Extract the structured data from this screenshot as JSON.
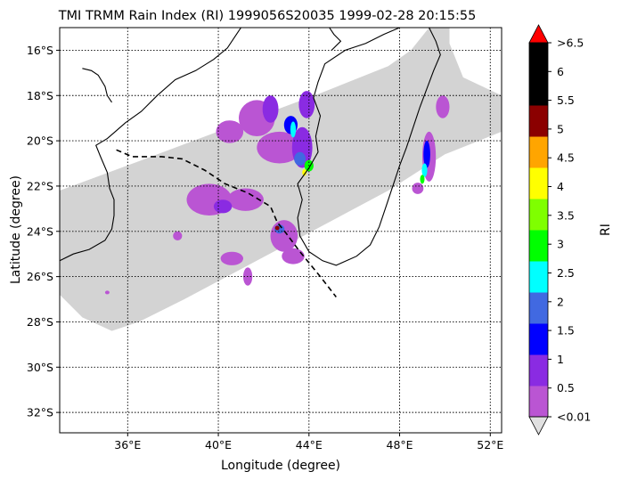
{
  "title": "TMI TRMM Rain Index (RI) 1999056S20035 1999-02-28 20:15:55",
  "xlabel": "Longitude (degree)",
  "ylabel": "Latitude (degree)",
  "map": {
    "lon_range": [
      33,
      52.5
    ],
    "lat_range": [
      -32.9,
      -15
    ],
    "lon_ticks": [
      {
        "value": 36,
        "label": "36°E"
      },
      {
        "value": 40,
        "label": "40°E"
      },
      {
        "value": 44,
        "label": "44°E"
      },
      {
        "value": 48,
        "label": "48°E"
      },
      {
        "value": 52,
        "label": "52°E"
      }
    ],
    "lat_ticks": [
      {
        "value": -16,
        "label": "16°S"
      },
      {
        "value": -18,
        "label": "18°S"
      },
      {
        "value": -20,
        "label": "20°S"
      },
      {
        "value": -22,
        "label": "22°S"
      },
      {
        "value": -24,
        "label": "24°S"
      },
      {
        "value": -26,
        "label": "26°S"
      },
      {
        "value": -28,
        "label": "28°S"
      },
      {
        "value": -30,
        "label": "30°S"
      },
      {
        "value": -32,
        "label": "32°S"
      }
    ],
    "grid": "dotted",
    "swath_color": "#d3d3d3",
    "track": [
      [
        35.5,
        -20.4
      ],
      [
        36.2,
        -20.7
      ],
      [
        37.5,
        -20.7
      ],
      [
        38.4,
        -20.8
      ],
      [
        39.4,
        -21.3
      ],
      [
        40.3,
        -21.9
      ],
      [
        41.3,
        -22.3
      ],
      [
        42.3,
        -22.9
      ],
      [
        42.6,
        -23.6
      ],
      [
        43.0,
        -24.1
      ],
      [
        43.6,
        -24.9
      ],
      [
        44.5,
        -26.0
      ],
      [
        45.2,
        -26.9
      ]
    ],
    "africa_coast": [
      [
        33,
        -25.3
      ],
      [
        33.6,
        -25.0
      ],
      [
        34.3,
        -24.8
      ],
      [
        35.0,
        -24.4
      ],
      [
        35.3,
        -23.9
      ],
      [
        35.4,
        -23.3
      ],
      [
        35.4,
        -22.6
      ],
      [
        35.2,
        -22.1
      ],
      [
        35.1,
        -21.4
      ],
      [
        34.8,
        -20.7
      ],
      [
        34.6,
        -20.2
      ],
      [
        35.1,
        -19.9
      ],
      [
        35.9,
        -19.2
      ],
      [
        36.6,
        -18.7
      ],
      [
        37.3,
        -18.0
      ],
      [
        38.1,
        -17.3
      ],
      [
        39.0,
        -16.9
      ],
      [
        39.8,
        -16.4
      ],
      [
        40.4,
        -15.9
      ],
      [
        40.8,
        -15.3
      ],
      [
        41.0,
        -15.0
      ]
    ],
    "lake_shore": [
      [
        34.0,
        -16.8
      ],
      [
        34.4,
        -16.9
      ],
      [
        34.7,
        -17.1
      ],
      [
        35.0,
        -17.6
      ],
      [
        35.1,
        -18.0
      ],
      [
        35.3,
        -18.3
      ]
    ],
    "madagascar_coast": [
      [
        49.3,
        -15.0
      ],
      [
        49.6,
        -15.6
      ],
      [
        49.8,
        -16.2
      ],
      [
        49.5,
        -16.9
      ],
      [
        49.2,
        -17.7
      ],
      [
        48.9,
        -18.5
      ],
      [
        48.6,
        -19.4
      ],
      [
        48.3,
        -20.3
      ],
      [
        48.0,
        -21.1
      ],
      [
        47.7,
        -22.0
      ],
      [
        47.4,
        -22.9
      ],
      [
        47.1,
        -23.8
      ],
      [
        46.7,
        -24.6
      ],
      [
        46.1,
        -25.1
      ],
      [
        45.2,
        -25.5
      ],
      [
        44.6,
        -25.3
      ],
      [
        44.0,
        -24.9
      ],
      [
        43.6,
        -24.2
      ],
      [
        43.5,
        -23.4
      ],
      [
        43.7,
        -22.6
      ],
      [
        43.5,
        -21.9
      ],
      [
        44.0,
        -21.2
      ],
      [
        44.4,
        -20.5
      ],
      [
        44.3,
        -19.8
      ],
      [
        44.5,
        -18.9
      ],
      [
        44.2,
        -18.1
      ],
      [
        44.4,
        -17.4
      ],
      [
        44.7,
        -16.6
      ],
      [
        45.6,
        -16.0
      ],
      [
        46.5,
        -15.7
      ],
      [
        47.3,
        -15.3
      ],
      [
        48.0,
        -15.0
      ]
    ],
    "mozambique_coast_north": [
      [
        44.9,
        -15.0
      ],
      [
        45.1,
        -15.3
      ],
      [
        45.4,
        -15.6
      ],
      [
        45.0,
        -16.0
      ]
    ]
  },
  "rain_clusters": [
    {
      "lon": 40.5,
      "lat": -19.6,
      "rx": 0.6,
      "ry": 0.5,
      "level": 0
    },
    {
      "lon": 41.7,
      "lat": -19.0,
      "rx": 0.8,
      "ry": 0.8,
      "level": 0
    },
    {
      "lon": 42.7,
      "lat": -20.3,
      "rx": 1.0,
      "ry": 0.7,
      "level": 0
    },
    {
      "lon": 43.7,
      "lat": -20.3,
      "rx": 0.45,
      "ry": 0.9,
      "level": 1
    },
    {
      "lon": 42.3,
      "lat": -18.6,
      "rx": 0.35,
      "ry": 0.6,
      "level": 1
    },
    {
      "lon": 43.2,
      "lat": -19.3,
      "rx": 0.3,
      "ry": 0.4,
      "level": 2
    },
    {
      "lon": 43.9,
      "lat": -18.4,
      "rx": 0.35,
      "ry": 0.6,
      "level": 1
    },
    {
      "lon": 43.3,
      "lat": -19.5,
      "rx": 0.12,
      "ry": 0.35,
      "level": 4
    },
    {
      "lon": 44.0,
      "lat": -21.1,
      "rx": 0.2,
      "ry": 0.25,
      "level": 5
    },
    {
      "lon": 43.8,
      "lat": -21.4,
      "rx": 0.1,
      "ry": 0.15,
      "level": 7
    },
    {
      "lon": 43.6,
      "lat": -20.8,
      "rx": 0.25,
      "ry": 0.3,
      "level": 3
    },
    {
      "lon": 39.6,
      "lat": -22.6,
      "rx": 1.0,
      "ry": 0.7,
      "level": 0
    },
    {
      "lon": 41.2,
      "lat": -22.6,
      "rx": 0.8,
      "ry": 0.5,
      "level": 0
    },
    {
      "lon": 40.2,
      "lat": -22.9,
      "rx": 0.4,
      "ry": 0.3,
      "level": 1
    },
    {
      "lon": 40.6,
      "lat": -25.2,
      "rx": 0.5,
      "ry": 0.3,
      "level": 0
    },
    {
      "lon": 42.9,
      "lat": -24.2,
      "rx": 0.6,
      "ry": 0.7,
      "level": 0
    },
    {
      "lon": 43.3,
      "lat": -25.1,
      "rx": 0.5,
      "ry": 0.35,
      "level": 0
    },
    {
      "lon": 42.7,
      "lat": -23.9,
      "rx": 0.22,
      "ry": 0.2,
      "level": 3
    },
    {
      "lon": 42.6,
      "lat": -23.85,
      "rx": 0.1,
      "ry": 0.1,
      "level": 10
    },
    {
      "lon": 41.3,
      "lat": -26.0,
      "rx": 0.2,
      "ry": 0.4,
      "level": 0
    },
    {
      "lon": 38.2,
      "lat": -24.2,
      "rx": 0.2,
      "ry": 0.2,
      "level": 0
    },
    {
      "lon": 49.9,
      "lat": -18.5,
      "rx": 0.3,
      "ry": 0.5,
      "level": 0
    },
    {
      "lon": 49.3,
      "lat": -20.7,
      "rx": 0.3,
      "ry": 1.1,
      "level": 0
    },
    {
      "lon": 49.2,
      "lat": -20.6,
      "rx": 0.15,
      "ry": 0.6,
      "level": 2
    },
    {
      "lon": 49.1,
      "lat": -21.3,
      "rx": 0.12,
      "ry": 0.3,
      "level": 4
    },
    {
      "lon": 49.0,
      "lat": -21.7,
      "rx": 0.1,
      "ry": 0.2,
      "level": 5
    },
    {
      "lon": 48.8,
      "lat": -22.1,
      "rx": 0.25,
      "ry": 0.25,
      "level": 0
    },
    {
      "lon": 35.1,
      "lat": -26.7,
      "rx": 0.1,
      "ry": 0.08,
      "level": 0
    }
  ],
  "colorbar": {
    "label": "RI",
    "colors": [
      "#ba55d3",
      "#8a2be2",
      "#0000ff",
      "#4169e1",
      "#00ffff",
      "#00ff00",
      "#7fff00",
      "#ffff00",
      "#ffa500",
      "#8b0000",
      "#000000",
      "#000000"
    ],
    "over_color": "#ff0000",
    "under_color": "#e0e0e0",
    "tick_labels": [
      "<0.01",
      "0.5",
      "1",
      "1.5",
      "2",
      "2.5",
      "3",
      "3.5",
      "4",
      "4.5",
      "5",
      "5.5",
      "6",
      ">6.5"
    ]
  }
}
